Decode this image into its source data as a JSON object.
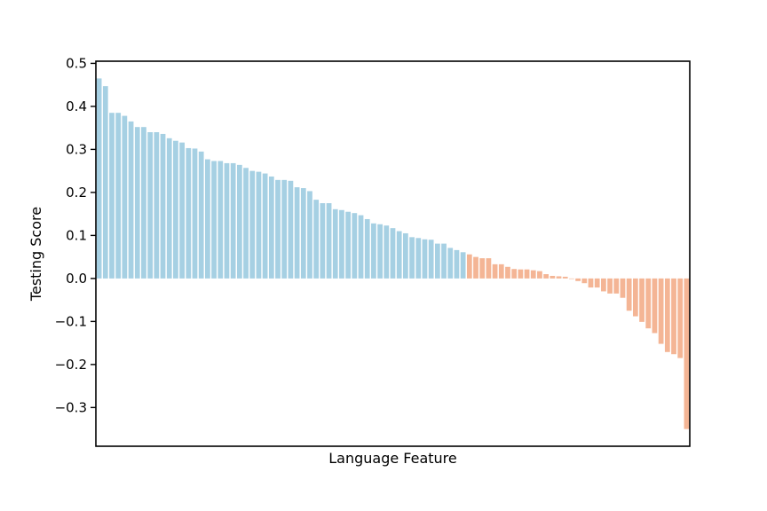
{
  "chart_data": {
    "type": "bar",
    "title": "",
    "xlabel": "Language Feature",
    "ylabel": "Testing Score",
    "ylim": [
      -0.39,
      0.505
    ],
    "yticks": [
      -0.3,
      -0.2,
      -0.1,
      0.0,
      0.1,
      0.2,
      0.3,
      0.4,
      0.5
    ],
    "ytick_labels": [
      "−0.3",
      "−0.2",
      "−0.1",
      "0.0",
      "0.1",
      "0.2",
      "0.3",
      "0.4",
      "0.5"
    ],
    "x_ticks_visible": false,
    "grid": false,
    "legend": "none",
    "colors": {
      "positive_top": "#a6d0e3",
      "positive_bottom": "#f4b595"
    },
    "blue_count": 58,
    "values": [
      0.465,
      0.447,
      0.385,
      0.385,
      0.378,
      0.365,
      0.352,
      0.352,
      0.34,
      0.34,
      0.336,
      0.326,
      0.32,
      0.316,
      0.303,
      0.302,
      0.295,
      0.277,
      0.273,
      0.273,
      0.268,
      0.268,
      0.264,
      0.257,
      0.25,
      0.248,
      0.244,
      0.237,
      0.229,
      0.229,
      0.227,
      0.212,
      0.21,
      0.203,
      0.183,
      0.175,
      0.175,
      0.161,
      0.159,
      0.155,
      0.152,
      0.147,
      0.138,
      0.128,
      0.126,
      0.123,
      0.117,
      0.11,
      0.105,
      0.096,
      0.094,
      0.091,
      0.09,
      0.081,
      0.081,
      0.071,
      0.066,
      0.061,
      0.056,
      0.05,
      0.047,
      0.047,
      0.033,
      0.033,
      0.027,
      0.022,
      0.021,
      0.021,
      0.019,
      0.017,
      0.01,
      0.006,
      0.005,
      0.004,
      0.0,
      -0.006,
      -0.011,
      -0.021,
      -0.021,
      -0.03,
      -0.035,
      -0.035,
      -0.045,
      -0.075,
      -0.088,
      -0.101,
      -0.116,
      -0.127,
      -0.152,
      -0.171,
      -0.176,
      -0.185,
      -0.35
    ]
  }
}
